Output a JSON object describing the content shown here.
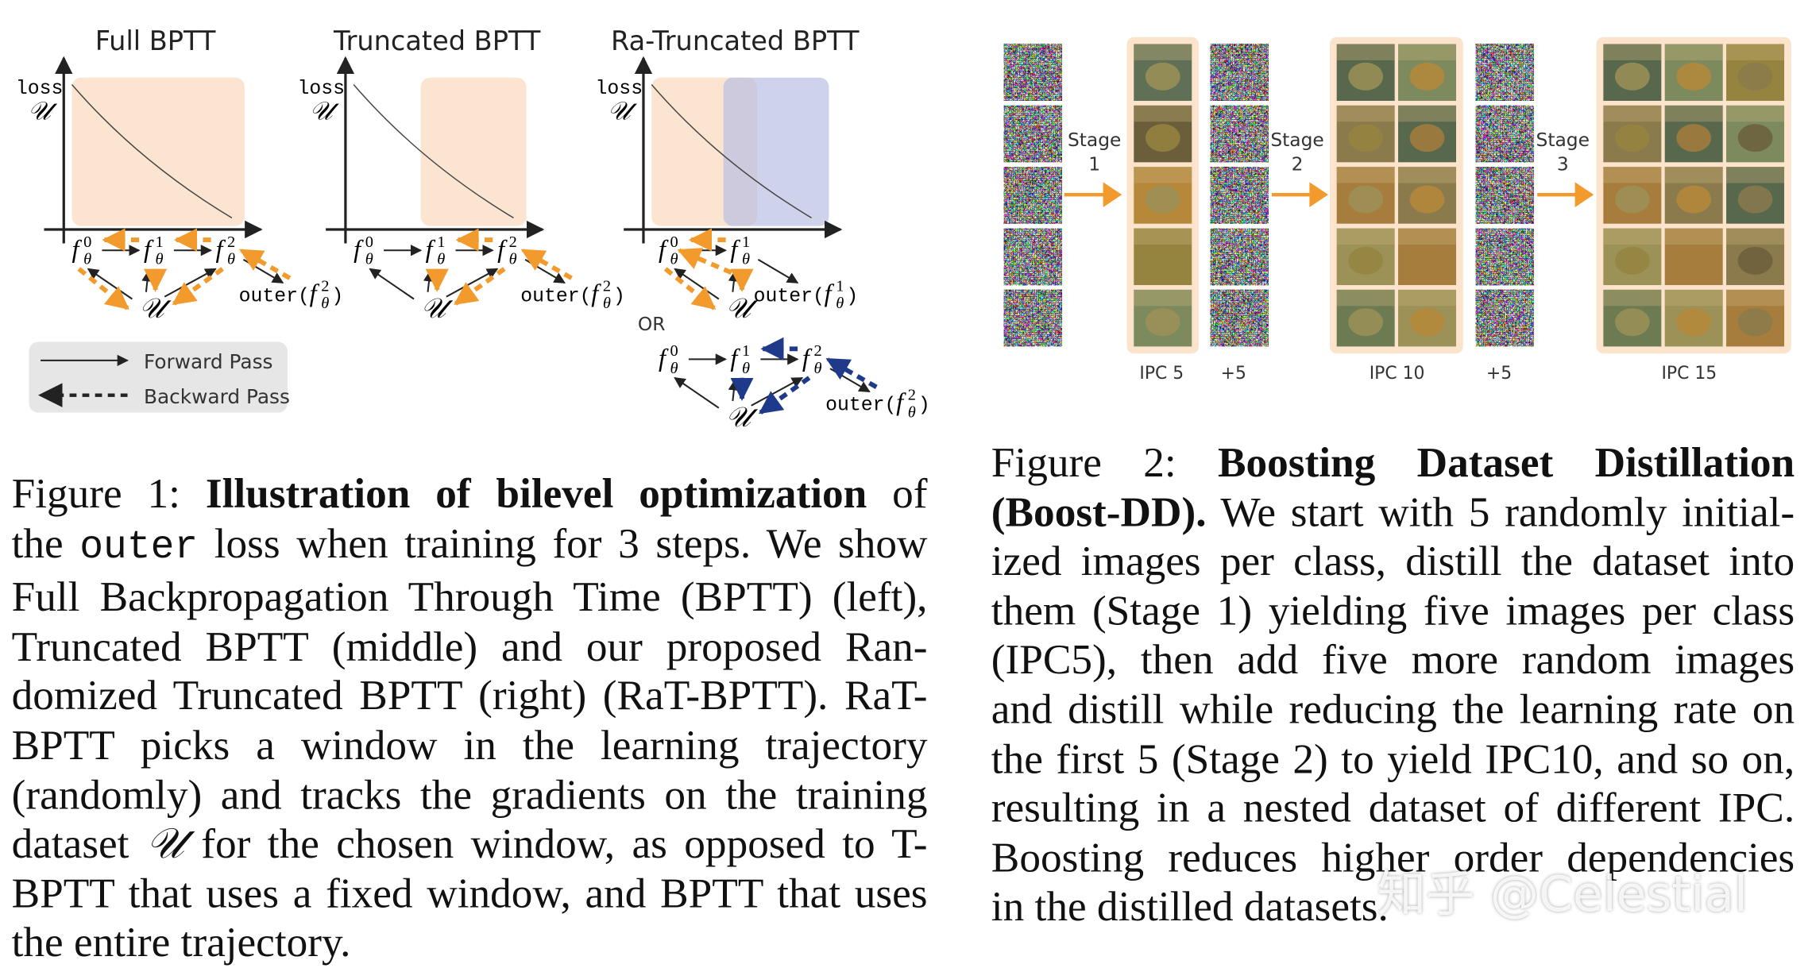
{
  "figure1": {
    "panels": [
      {
        "title": "Full BPTT",
        "y_label": "loss",
        "y_symbol": "𝒰",
        "nodes": [
          {
            "base": "f",
            "sub": "θ",
            "sup": "0"
          },
          {
            "base": "f",
            "sub": "θ",
            "sup": "1"
          },
          {
            "base": "f",
            "sub": "θ",
            "sup": "2"
          }
        ],
        "source": "𝒰",
        "outer": {
          "text": "outer(",
          "base": "f",
          "sub": "θ",
          "sup": "2",
          "end": ")"
        }
      },
      {
        "title": "Truncated BPTT",
        "y_label": "loss",
        "y_symbol": "𝒰",
        "nodes": [
          {
            "base": "f",
            "sub": "θ",
            "sup": "0"
          },
          {
            "base": "f",
            "sub": "θ",
            "sup": "1"
          },
          {
            "base": "f",
            "sub": "θ",
            "sup": "2"
          }
        ],
        "source": "𝒰",
        "outer": {
          "text": "outer(",
          "base": "f",
          "sub": "θ",
          "sup": "2",
          "end": ")"
        }
      },
      {
        "title": "Ra-Truncated BPTT",
        "y_label": "loss",
        "y_symbol": "𝒰",
        "nodes": [
          {
            "base": "f",
            "sub": "θ",
            "sup": "0"
          },
          {
            "base": "f",
            "sub": "θ",
            "sup": "1"
          }
        ],
        "source": "𝒰",
        "outer": {
          "text": "outer(",
          "base": "f",
          "sub": "θ",
          "sup": "1",
          "end": ")"
        }
      }
    ],
    "or": "OR",
    "alternative": {
      "nodes": [
        {
          "base": "f",
          "sub": "θ",
          "sup": "0"
        },
        {
          "base": "f",
          "sub": "θ",
          "sup": "1"
        },
        {
          "base": "f",
          "sub": "θ",
          "sup": "2"
        }
      ],
      "source": "𝒰",
      "outer": {
        "text": "outer(",
        "base": "f",
        "sub": "θ",
        "sup": "2",
        "end": ")"
      }
    },
    "legend": [
      "Forward Pass",
      "Backward Pass"
    ],
    "caption": [
      [
        "Figure 1: ",
        {
          "t": "Illustration of bilevel optimization",
          "s": "b"
        },
        " of"
      ],
      [
        "the ",
        {
          "t": "outer",
          "s": "m"
        },
        " loss when training for 3 steps. We show"
      ],
      [
        "Full Backpropagation Through Time (BPTT) (left),"
      ],
      [
        "Truncated BPTT (middle) and our proposed Ran-"
      ],
      [
        "domized Truncated BPTT (right) (RaT-BPTT). RaT-"
      ],
      [
        "BPTT picks a window in the learning trajectory"
      ],
      [
        "(randomly) and tracks the gradients on the training"
      ],
      [
        "dataset ",
        {
          "t": "𝒰",
          "s": "i"
        },
        " for the chosen window, as opposed to T-"
      ],
      [
        "BPTT that uses a fixed window, and BPTT that uses"
      ],
      [
        "the entire trajectory."
      ]
    ]
  },
  "figure2": {
    "stages": [
      {
        "label": "Stage",
        "number": "1"
      },
      {
        "label": "Stage",
        "number": "2"
      },
      {
        "label": "Stage",
        "number": "3"
      }
    ],
    "ipc_labels": [
      "IPC 5",
      "IPC 10",
      "IPC 15"
    ],
    "increments": [
      "+5",
      "+5"
    ],
    "caption": [
      [
        "Figure 2: ",
        {
          "t": "Boosting Dataset Distillation",
          "s": "b"
        }
      ],
      [
        {
          "t": "(Boost-DD).",
          "s": "b"
        },
        " We start with 5 randomly initial-"
      ],
      [
        "ized images per class, distill the dataset into"
      ],
      [
        "them (Stage 1) yielding five images per class"
      ],
      [
        "(IPC5), then add five more random images"
      ],
      [
        "and distill while reducing the learning rate on"
      ],
      [
        "the first 5 (Stage 2) to yield IPC10, and so on,"
      ],
      [
        "resulting in a nested dataset of different IPC."
      ],
      [
        "Boosting reduces higher order dependencies"
      ],
      [
        "in the distilled datasets."
      ]
    ]
  },
  "watermark": "知乎 @Celestial"
}
